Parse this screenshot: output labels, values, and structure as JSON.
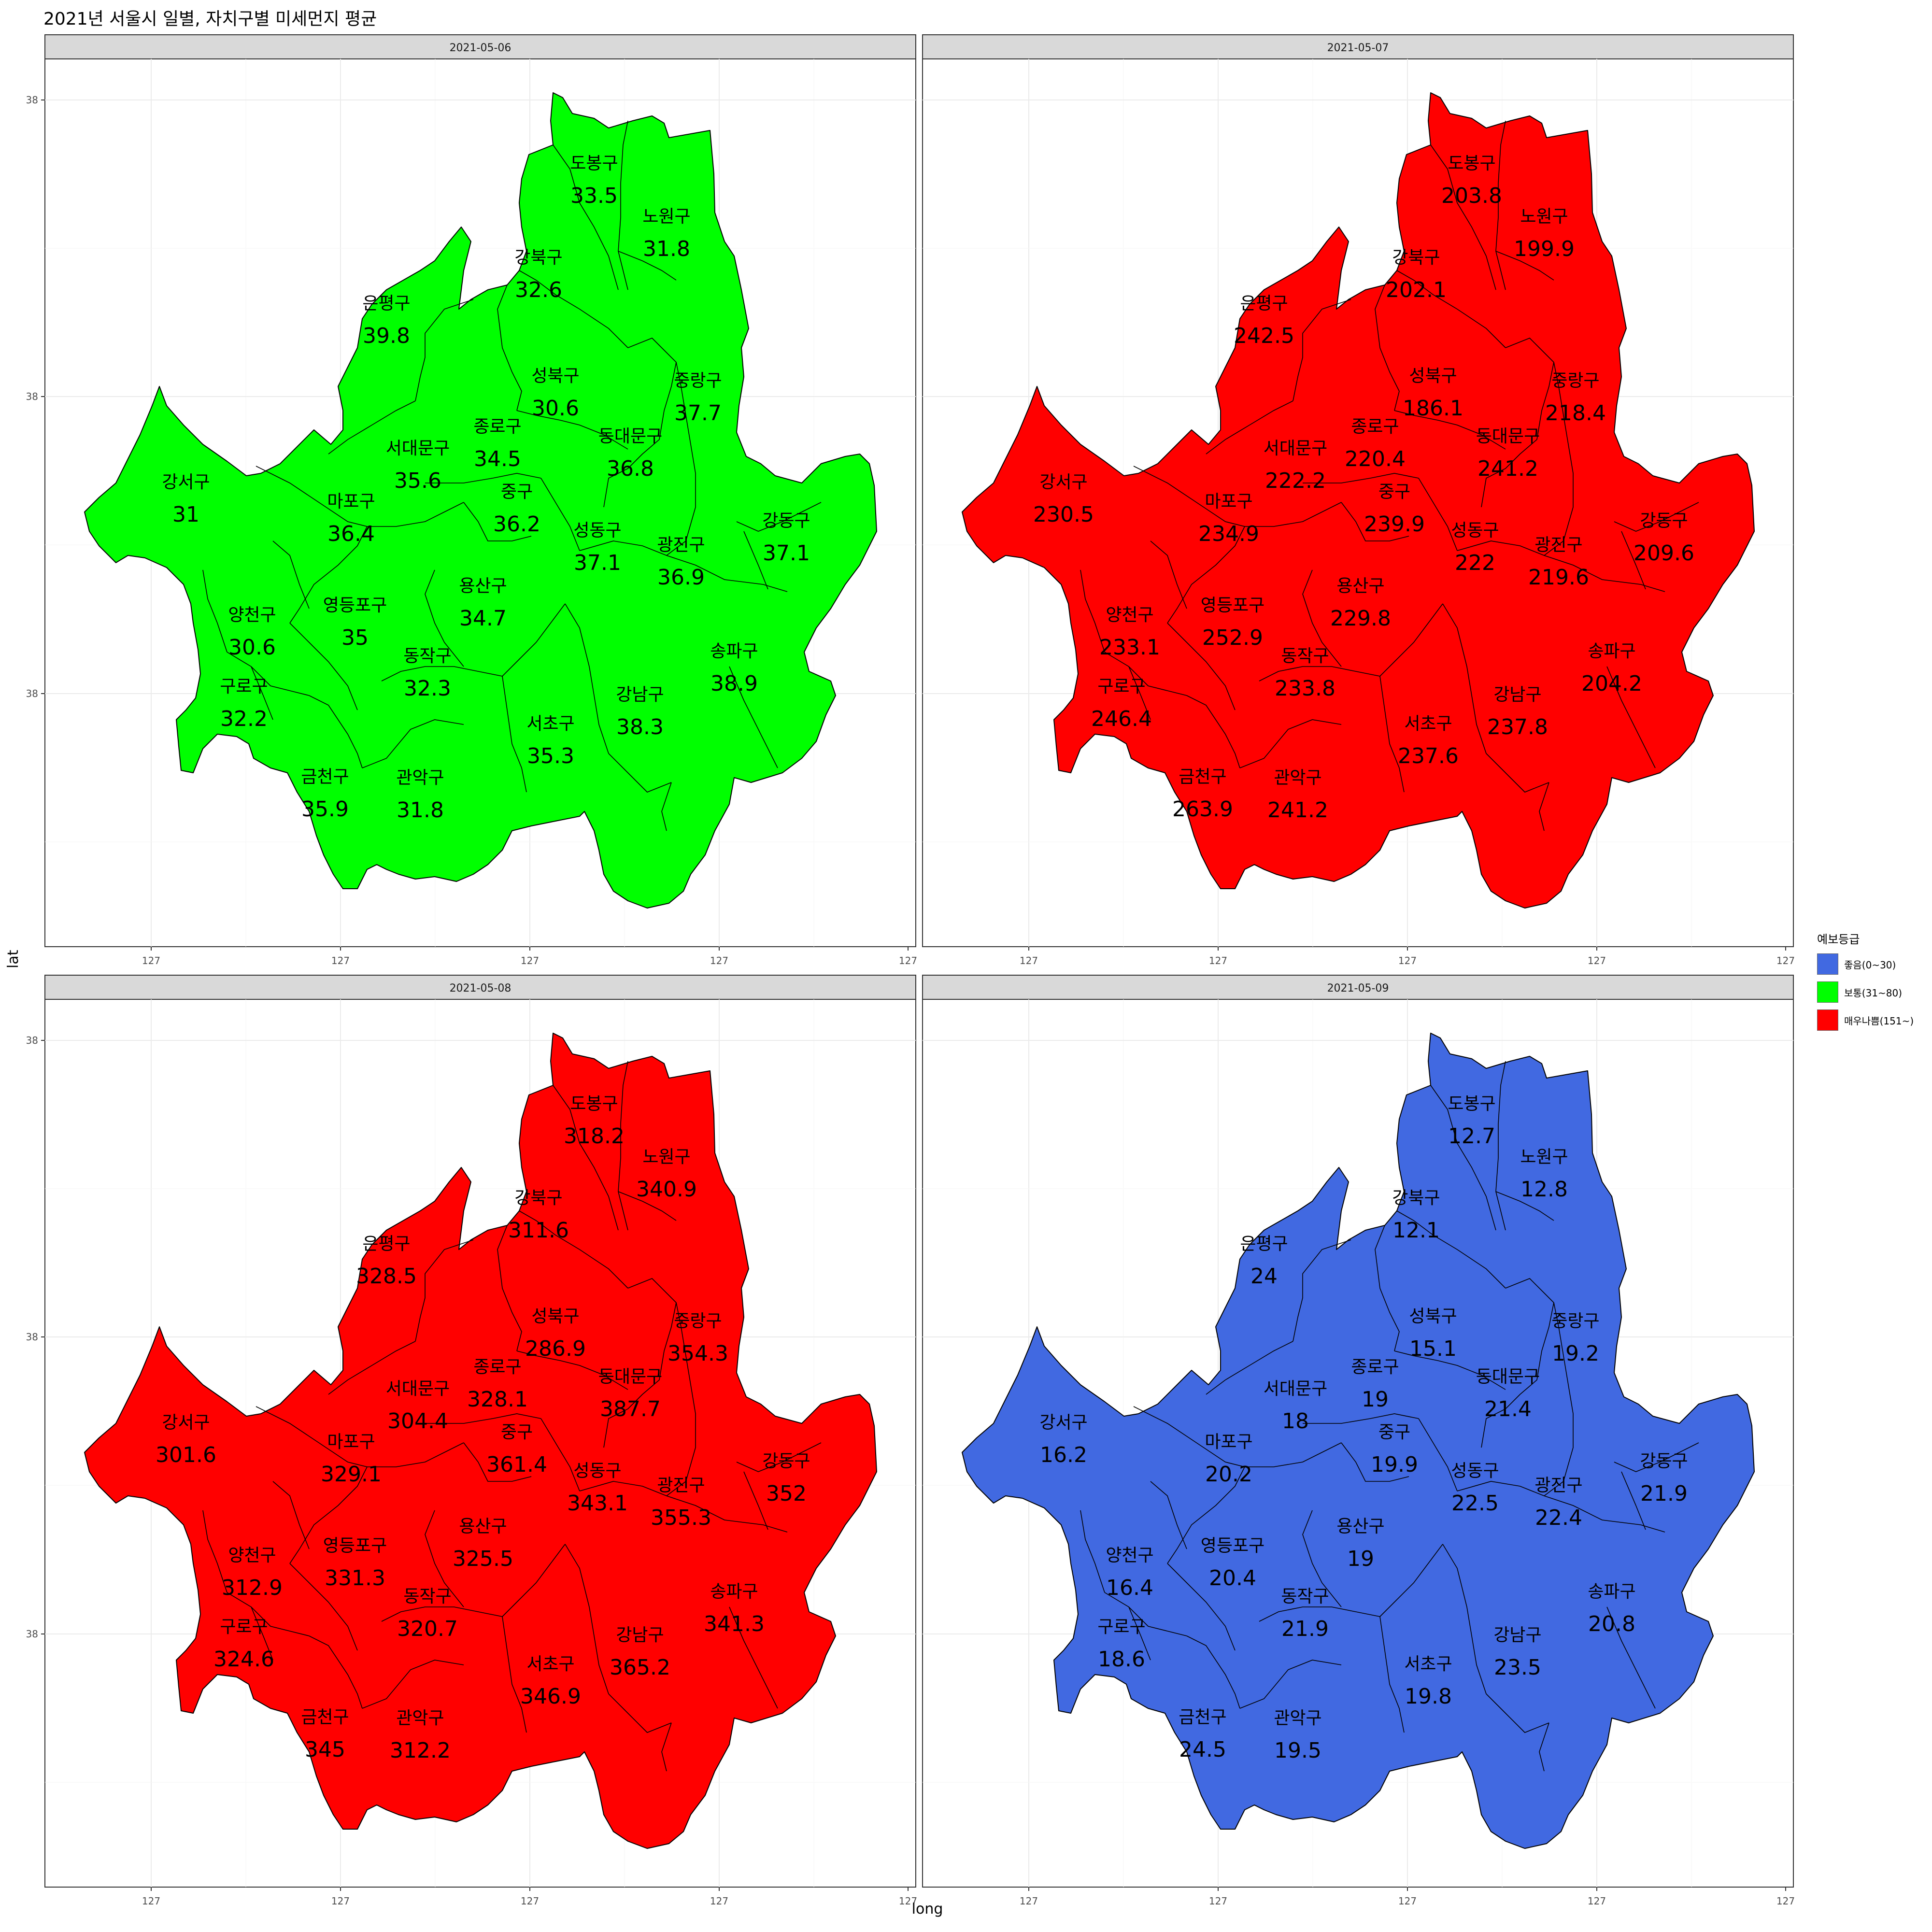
{
  "title": "2021년 서울시 일별, 자치구별 미세먼지 평균",
  "axes": {
    "xlabel": "long",
    "ylabel": "lat",
    "x_ticks": [
      "127",
      "127",
      "127",
      "127",
      "127",
      "127"
    ],
    "y_ticks": [
      "38",
      "38",
      "38"
    ]
  },
  "legend": {
    "title": "예보등급",
    "items": [
      {
        "label": "좋음(0~30)",
        "color": "#4169E1"
      },
      {
        "label": "보통(31~80)",
        "color": "#00FF00"
      },
      {
        "label": "매우나쁨(151~)",
        "color": "#FF0000"
      }
    ]
  },
  "districts": [
    "도봉구",
    "노원구",
    "강북구",
    "은평구",
    "성북구",
    "중랑구",
    "종로구",
    "서대문구",
    "동대문구",
    "강서구",
    "마포구",
    "중구",
    "성동구",
    "광진구",
    "강동구",
    "용산구",
    "양천구",
    "영등포구",
    "송파구",
    "동작구",
    "구로구",
    "강남구",
    "서초구",
    "금천구",
    "관악구"
  ],
  "chart_data": {
    "type": "choropleth",
    "facets": [
      {
        "date": "2021-05-06",
        "fill": "#00FF00",
        "values": [
          "33.5",
          "31.8",
          "32.6",
          "39.8",
          "30.6",
          "37.7",
          "34.5",
          "35.6",
          "36.8",
          "31",
          "36.4",
          "36.2",
          "37.1",
          "36.9",
          "37.1",
          "34.7",
          "30.6",
          "35",
          "38.9",
          "32.3",
          "32.2",
          "38.3",
          "35.3",
          "35.9",
          "31.8"
        ]
      },
      {
        "date": "2021-05-07",
        "fill": "#FF0000",
        "values": [
          "203.8",
          "199.9",
          "202.1",
          "242.5",
          "186.1",
          "218.4",
          "220.4",
          "222.2",
          "241.2",
          "230.5",
          "234.9",
          "239.9",
          "222",
          "219.6",
          "209.6",
          "229.8",
          "233.1",
          "252.9",
          "204.2",
          "233.8",
          "246.4",
          "237.8",
          "237.6",
          "263.9",
          "241.2"
        ]
      },
      {
        "date": "2021-05-08",
        "fill": "#FF0000",
        "values": [
          "318.2",
          "340.9",
          "311.6",
          "328.5",
          "286.9",
          "354.3",
          "328.1",
          "304.4",
          "387.7",
          "301.6",
          "329.1",
          "361.4",
          "343.1",
          "355.3",
          "352",
          "325.5",
          "312.9",
          "331.3",
          "341.3",
          "320.7",
          "324.6",
          "365.2",
          "346.9",
          "345",
          "312.2"
        ]
      },
      {
        "date": "2021-05-09",
        "fill": "#4169E1",
        "values": [
          "12.7",
          "12.8",
          "12.1",
          "24",
          "15.1",
          "19.2",
          "19",
          "18",
          "21.4",
          "16.2",
          "20.2",
          "19.9",
          "22.5",
          "22.4",
          "21.9",
          "19",
          "16.4",
          "20.4",
          "20.8",
          "21.9",
          "18.6",
          "23.5",
          "19.8",
          "24.5",
          "19.5"
        ]
      }
    ]
  }
}
